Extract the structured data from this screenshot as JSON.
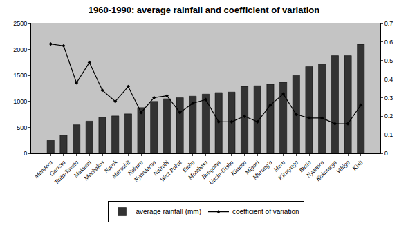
{
  "chart_data": {
    "type": "bar",
    "title": "1960-1990: average rainfall and coefficient of variation",
    "categories": [
      "Mandera",
      "Garissa",
      "Taita-Taveta",
      "Makueni",
      "Machakos",
      "Narok",
      "Marsabit",
      "Nakuru",
      "Nyandarua",
      "Nairobi",
      "West Pokot",
      "Embu",
      "Mombasa",
      "Bungoma",
      "Uasin-Gishu",
      "Kisumu",
      "Migori",
      "Murang'a",
      "Meru",
      "Kirinyaga",
      "Busia",
      "Nyamira",
      "Kakamega",
      "Vihiga",
      "Kisii"
    ],
    "series": [
      {
        "name": "average rainfall (mm)",
        "type": "bar",
        "color": "#333333",
        "values": [
          250,
          350,
          550,
          620,
          690,
          720,
          760,
          880,
          1000,
          1050,
          1070,
          1100,
          1140,
          1170,
          1180,
          1290,
          1300,
          1330,
          1370,
          1500,
          1670,
          1720,
          1880,
          1880,
          2100
        ]
      },
      {
        "name": "coefficient of variation",
        "type": "line",
        "color": "#000000",
        "marker": "diamond",
        "axis": "y2",
        "values": [
          0.59,
          0.58,
          0.38,
          0.49,
          0.34,
          0.28,
          0.36,
          0.22,
          0.3,
          0.31,
          0.22,
          0.27,
          0.29,
          0.17,
          0.17,
          0.2,
          0.17,
          0.26,
          0.32,
          0.21,
          0.19,
          0.19,
          0.16,
          0.16,
          0.26
        ]
      }
    ],
    "ylim": [
      0,
      2500
    ],
    "yticks": [
      0,
      500,
      1000,
      1500,
      2000,
      2500
    ],
    "y2lim": [
      0,
      0.7
    ],
    "y2ticks": [
      0,
      0.1,
      0.2,
      0.3,
      0.4,
      0.5,
      0.6,
      0.7
    ],
    "grid": false,
    "legend": "bottom"
  }
}
